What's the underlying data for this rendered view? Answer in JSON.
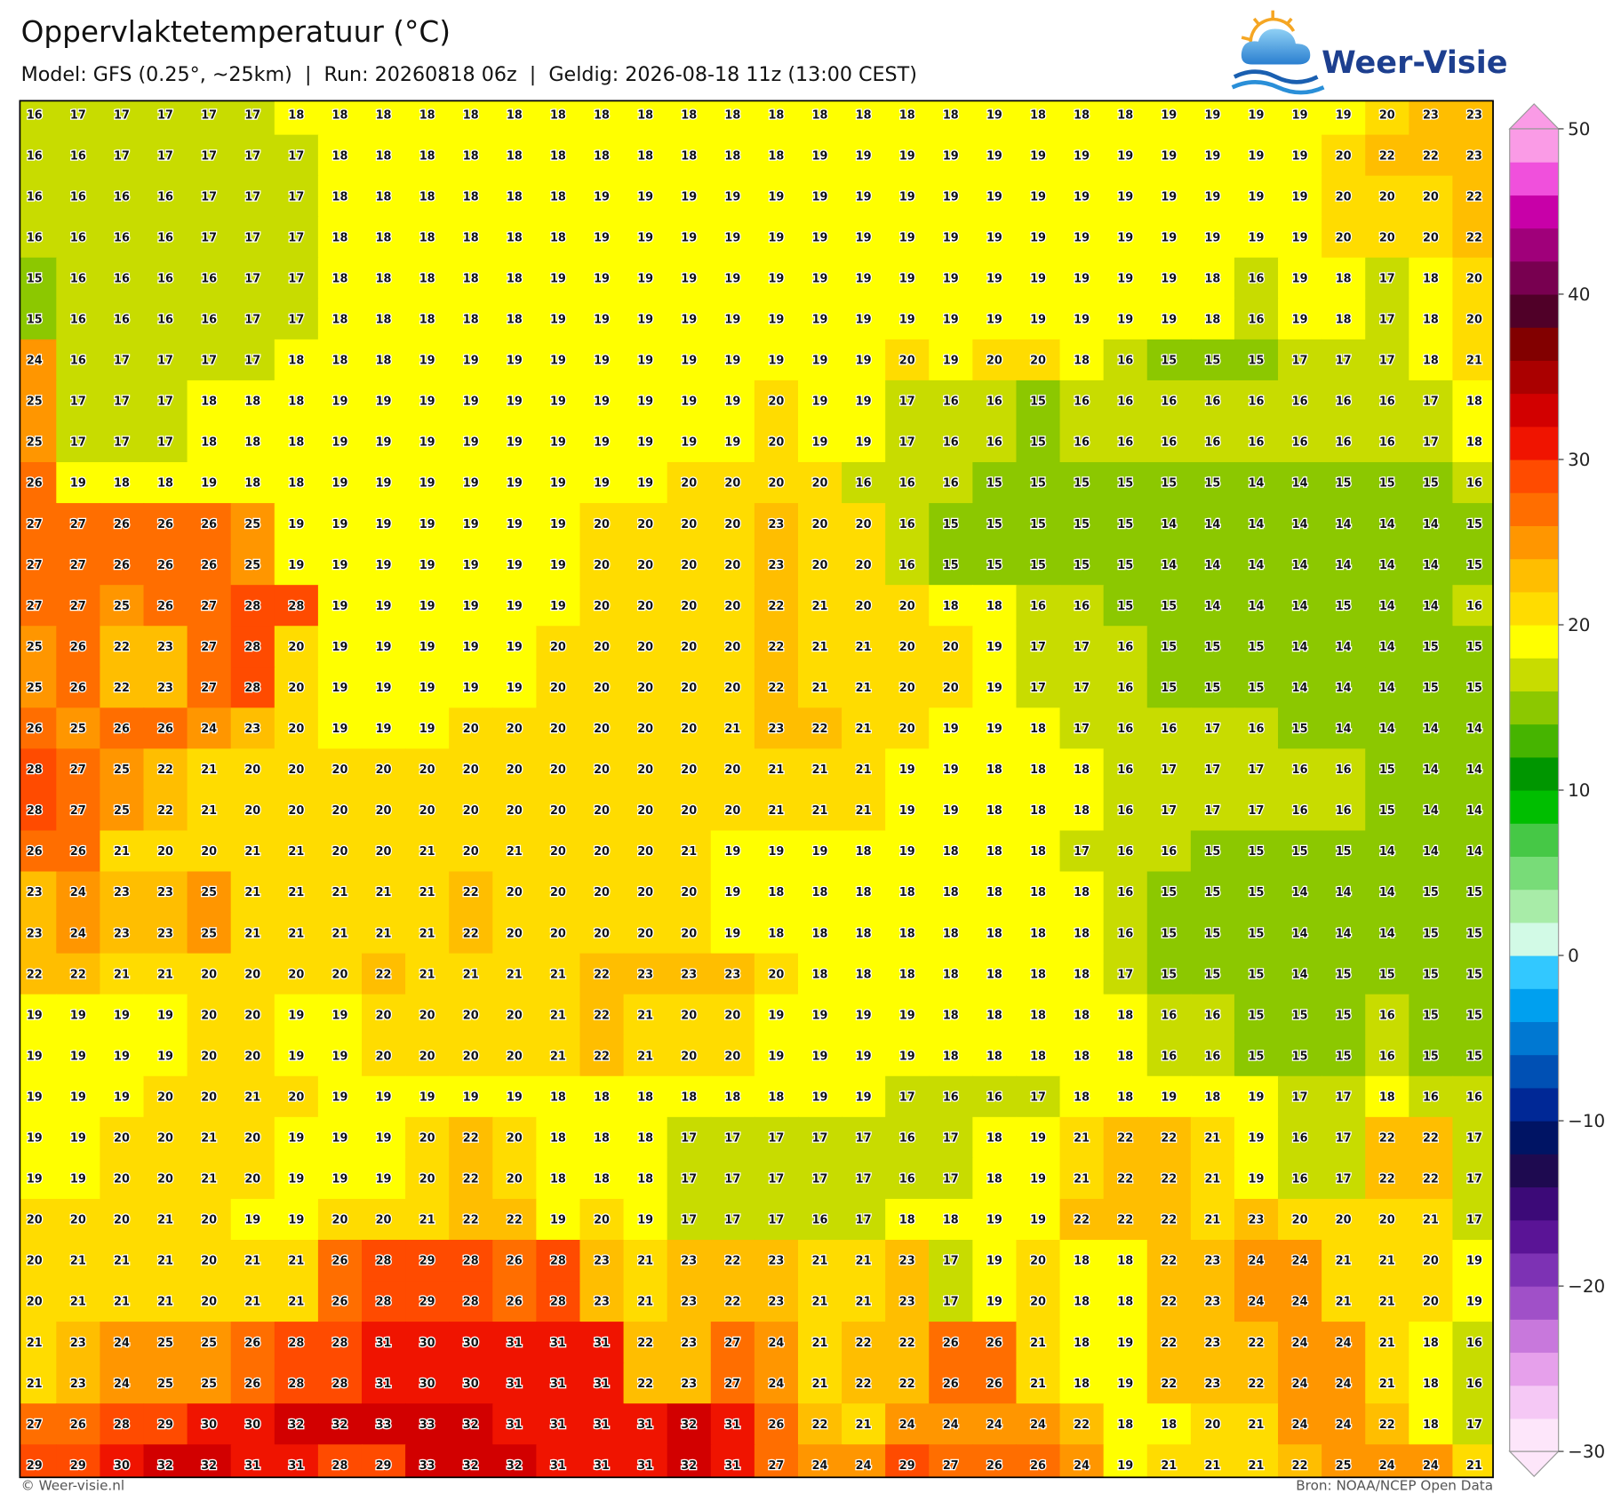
{
  "logo": "Weer-Visie",
  "footer_left": "© Weer-visie.nl",
  "footer_right": "Bron: NOAA/NCEP Open Data",
  "chart_data": {
    "type": "heatmap",
    "title": "Oppervlaktetemperatuur (°C)",
    "subtitle": "Model: GFS (0.25°, ~25km)  |  Run: 20260818 06z  |  Geldig: 2026-08-18 11z (13:00 CEST)",
    "values": [
      [
        16,
        17,
        17,
        17,
        17,
        17,
        18,
        18,
        18,
        18,
        18,
        18,
        18,
        18,
        18,
        18,
        18,
        18,
        18,
        18,
        18,
        18,
        19,
        18,
        18,
        18,
        19,
        19,
        19,
        19,
        19,
        20,
        23,
        23
      ],
      [
        16,
        16,
        17,
        17,
        17,
        17,
        17,
        18,
        18,
        18,
        18,
        18,
        18,
        18,
        18,
        18,
        18,
        18,
        19,
        19,
        19,
        19,
        19,
        19,
        19,
        19,
        19,
        19,
        19,
        19,
        20,
        22,
        22,
        23
      ],
      [
        16,
        16,
        16,
        16,
        17,
        17,
        17,
        18,
        18,
        18,
        18,
        18,
        18,
        19,
        19,
        19,
        19,
        19,
        19,
        19,
        19,
        19,
        19,
        19,
        19,
        19,
        19,
        19,
        19,
        19,
        20,
        20,
        20,
        22
      ],
      [
        16,
        16,
        16,
        16,
        17,
        17,
        17,
        18,
        18,
        18,
        18,
        18,
        18,
        19,
        19,
        19,
        19,
        19,
        19,
        19,
        19,
        19,
        19,
        19,
        19,
        19,
        19,
        19,
        19,
        19,
        20,
        20,
        20,
        22
      ],
      [
        15,
        16,
        16,
        16,
        16,
        17,
        17,
        18,
        18,
        18,
        18,
        18,
        19,
        19,
        19,
        19,
        19,
        19,
        19,
        19,
        19,
        19,
        19,
        19,
        19,
        19,
        19,
        18,
        16,
        19,
        18,
        17,
        18,
        20
      ],
      [
        15,
        16,
        16,
        16,
        16,
        17,
        17,
        18,
        18,
        18,
        18,
        18,
        19,
        19,
        19,
        19,
        19,
        19,
        19,
        19,
        19,
        19,
        19,
        19,
        19,
        19,
        19,
        18,
        16,
        19,
        18,
        17,
        18,
        20
      ],
      [
        24,
        16,
        17,
        17,
        17,
        17,
        18,
        18,
        18,
        19,
        19,
        19,
        19,
        19,
        19,
        19,
        19,
        19,
        19,
        19,
        20,
        19,
        20,
        20,
        18,
        16,
        15,
        15,
        15,
        17,
        17,
        17,
        18,
        21
      ],
      [
        25,
        17,
        17,
        17,
        18,
        18,
        18,
        19,
        19,
        19,
        19,
        19,
        19,
        19,
        19,
        19,
        19,
        20,
        19,
        19,
        17,
        16,
        16,
        15,
        16,
        16,
        16,
        16,
        16,
        16,
        16,
        16,
        17,
        18
      ],
      [
        25,
        17,
        17,
        17,
        18,
        18,
        18,
        19,
        19,
        19,
        19,
        19,
        19,
        19,
        19,
        19,
        19,
        20,
        19,
        19,
        17,
        16,
        16,
        15,
        16,
        16,
        16,
        16,
        16,
        16,
        16,
        16,
        17,
        18
      ],
      [
        26,
        19,
        18,
        18,
        19,
        18,
        18,
        19,
        19,
        19,
        19,
        19,
        19,
        19,
        19,
        20,
        20,
        20,
        20,
        16,
        16,
        16,
        15,
        15,
        15,
        15,
        15,
        15,
        14,
        14,
        15,
        15,
        15,
        16
      ],
      [
        27,
        27,
        26,
        26,
        26,
        25,
        19,
        19,
        19,
        19,
        19,
        19,
        19,
        20,
        20,
        20,
        20,
        23,
        20,
        20,
        16,
        15,
        15,
        15,
        15,
        15,
        14,
        14,
        14,
        14,
        14,
        14,
        14,
        15
      ],
      [
        27,
        27,
        26,
        26,
        26,
        25,
        19,
        19,
        19,
        19,
        19,
        19,
        19,
        20,
        20,
        20,
        20,
        23,
        20,
        20,
        16,
        15,
        15,
        15,
        15,
        15,
        14,
        14,
        14,
        14,
        14,
        14,
        14,
        15
      ],
      [
        27,
        27,
        25,
        26,
        27,
        28,
        28,
        19,
        19,
        19,
        19,
        19,
        19,
        20,
        20,
        20,
        20,
        22,
        21,
        20,
        20,
        18,
        18,
        16,
        16,
        15,
        15,
        14,
        14,
        14,
        15,
        14,
        14,
        16
      ],
      [
        25,
        26,
        22,
        23,
        27,
        28,
        20,
        19,
        19,
        19,
        19,
        19,
        20,
        20,
        20,
        20,
        20,
        22,
        21,
        21,
        20,
        20,
        19,
        17,
        17,
        16,
        15,
        15,
        15,
        14,
        14,
        14,
        15,
        15
      ],
      [
        25,
        26,
        22,
        23,
        27,
        28,
        20,
        19,
        19,
        19,
        19,
        19,
        20,
        20,
        20,
        20,
        20,
        22,
        21,
        21,
        20,
        20,
        19,
        17,
        17,
        16,
        15,
        15,
        15,
        14,
        14,
        14,
        15,
        15
      ],
      [
        26,
        25,
        26,
        26,
        24,
        23,
        20,
        19,
        19,
        19,
        20,
        20,
        20,
        20,
        20,
        20,
        21,
        23,
        22,
        21,
        20,
        19,
        19,
        18,
        17,
        16,
        16,
        17,
        16,
        15,
        14,
        14,
        14,
        14
      ],
      [
        28,
        27,
        25,
        22,
        21,
        20,
        20,
        20,
        20,
        20,
        20,
        20,
        20,
        20,
        20,
        20,
        20,
        21,
        21,
        21,
        19,
        19,
        18,
        18,
        18,
        16,
        17,
        17,
        17,
        16,
        16,
        15,
        14,
        14
      ],
      [
        28,
        27,
        25,
        22,
        21,
        20,
        20,
        20,
        20,
        20,
        20,
        20,
        20,
        20,
        20,
        20,
        20,
        21,
        21,
        21,
        19,
        19,
        18,
        18,
        18,
        16,
        17,
        17,
        17,
        16,
        16,
        15,
        14,
        14
      ],
      [
        26,
        26,
        21,
        20,
        20,
        21,
        21,
        20,
        20,
        21,
        20,
        21,
        20,
        20,
        20,
        21,
        19,
        19,
        19,
        18,
        19,
        18,
        18,
        18,
        17,
        16,
        16,
        15,
        15,
        15,
        15,
        14,
        14,
        14
      ],
      [
        23,
        24,
        23,
        23,
        25,
        21,
        21,
        21,
        21,
        21,
        22,
        20,
        20,
        20,
        20,
        20,
        19,
        18,
        18,
        18,
        18,
        18,
        18,
        18,
        18,
        16,
        15,
        15,
        15,
        14,
        14,
        14,
        15,
        15
      ],
      [
        23,
        24,
        23,
        23,
        25,
        21,
        21,
        21,
        21,
        21,
        22,
        20,
        20,
        20,
        20,
        20,
        19,
        18,
        18,
        18,
        18,
        18,
        18,
        18,
        18,
        16,
        15,
        15,
        15,
        14,
        14,
        14,
        15,
        15
      ],
      [
        22,
        22,
        21,
        21,
        20,
        20,
        20,
        20,
        22,
        21,
        21,
        21,
        21,
        22,
        23,
        23,
        23,
        20,
        18,
        18,
        18,
        18,
        18,
        18,
        18,
        17,
        15,
        15,
        15,
        14,
        15,
        15,
        15,
        15
      ],
      [
        19,
        19,
        19,
        19,
        20,
        20,
        19,
        19,
        20,
        20,
        20,
        20,
        21,
        22,
        21,
        20,
        20,
        19,
        19,
        19,
        19,
        18,
        18,
        18,
        18,
        18,
        16,
        16,
        15,
        15,
        15,
        16,
        15,
        15
      ],
      [
        19,
        19,
        19,
        19,
        20,
        20,
        19,
        19,
        20,
        20,
        20,
        20,
        21,
        22,
        21,
        20,
        20,
        19,
        19,
        19,
        19,
        18,
        18,
        18,
        18,
        18,
        16,
        16,
        15,
        15,
        15,
        16,
        15,
        15
      ],
      [
        19,
        19,
        19,
        20,
        20,
        21,
        20,
        19,
        19,
        19,
        19,
        19,
        18,
        18,
        18,
        18,
        18,
        18,
        19,
        19,
        17,
        16,
        16,
        17,
        18,
        18,
        19,
        18,
        19,
        17,
        17,
        18,
        16,
        16
      ],
      [
        19,
        19,
        20,
        20,
        21,
        20,
        19,
        19,
        19,
        20,
        22,
        20,
        18,
        18,
        18,
        17,
        17,
        17,
        17,
        17,
        16,
        17,
        18,
        19,
        21,
        22,
        22,
        21,
        19,
        16,
        17,
        22,
        22,
        17
      ],
      [
        19,
        19,
        20,
        20,
        21,
        20,
        19,
        19,
        19,
        20,
        22,
        20,
        18,
        18,
        18,
        17,
        17,
        17,
        17,
        17,
        16,
        17,
        18,
        19,
        21,
        22,
        22,
        21,
        19,
        16,
        17,
        22,
        22,
        17
      ],
      [
        20,
        20,
        20,
        21,
        20,
        19,
        19,
        20,
        20,
        21,
        22,
        22,
        19,
        20,
        19,
        17,
        17,
        17,
        16,
        17,
        18,
        18,
        19,
        19,
        22,
        22,
        22,
        21,
        23,
        20,
        20,
        20,
        21,
        17
      ],
      [
        20,
        21,
        21,
        21,
        20,
        21,
        21,
        26,
        28,
        29,
        28,
        26,
        28,
        23,
        21,
        23,
        22,
        23,
        21,
        21,
        23,
        17,
        19,
        20,
        18,
        18,
        22,
        23,
        24,
        24,
        21,
        21,
        20,
        19
      ],
      [
        20,
        21,
        21,
        21,
        20,
        21,
        21,
        26,
        28,
        29,
        28,
        26,
        28,
        23,
        21,
        23,
        22,
        23,
        21,
        21,
        23,
        17,
        19,
        20,
        18,
        18,
        22,
        23,
        24,
        24,
        21,
        21,
        20,
        19
      ],
      [
        21,
        23,
        24,
        25,
        25,
        26,
        28,
        28,
        31,
        30,
        30,
        31,
        31,
        31,
        22,
        23,
        27,
        24,
        21,
        22,
        22,
        26,
        26,
        21,
        18,
        19,
        22,
        23,
        22,
        24,
        24,
        21,
        18,
        16
      ],
      [
        21,
        23,
        24,
        25,
        25,
        26,
        28,
        28,
        31,
        30,
        30,
        31,
        31,
        31,
        22,
        23,
        27,
        24,
        21,
        22,
        22,
        26,
        26,
        21,
        18,
        19,
        22,
        23,
        22,
        24,
        24,
        21,
        18,
        16
      ],
      [
        27,
        26,
        28,
        29,
        30,
        30,
        32,
        32,
        33,
        33,
        32,
        31,
        31,
        31,
        31,
        32,
        31,
        26,
        22,
        21,
        24,
        24,
        24,
        24,
        22,
        18,
        18,
        20,
        21,
        24,
        24,
        22,
        18,
        17
      ],
      [
        29,
        29,
        30,
        32,
        32,
        31,
        31,
        28,
        29,
        33,
        32,
        32,
        31,
        31,
        31,
        32,
        31,
        27,
        24,
        24,
        29,
        27,
        26,
        26,
        24,
        19,
        21,
        21,
        21,
        22,
        25,
        24,
        24,
        21
      ]
    ],
    "colorbar": {
      "clim": [
        -30,
        50
      ],
      "ticks": [
        {
          "value": -30,
          "label": "−30"
        },
        {
          "value": -20,
          "label": "−20"
        },
        {
          "value": -10,
          "label": "−10"
        },
        0,
        10,
        20,
        30,
        40,
        50
      ],
      "colors": [
        "#fde6fa",
        "#f5c8f5",
        "#e6a0eb",
        "#c878dc",
        "#a050c8",
        "#7d32b4",
        "#5a1496",
        "#3c0a78",
        "#1e0a50",
        "#001464",
        "#002896",
        "#0050b4",
        "#0078d2",
        "#00a0ef",
        "#32c8ff",
        "#d2fae6",
        "#a8eca8",
        "#78dc78",
        "#46c846",
        "#00be00",
        "#009600",
        "#46b400",
        "#8cc800",
        "#c8dc00",
        "#ffff00",
        "#ffdc00",
        "#ffbe00",
        "#ff9600",
        "#ff6e00",
        "#ff4b00",
        "#f01400",
        "#d20000",
        "#aa0000",
        "#820000",
        "#500028",
        "#780050",
        "#a0007a",
        "#c800a8",
        "#f050dc",
        "#fa9be6"
      ]
    }
  }
}
